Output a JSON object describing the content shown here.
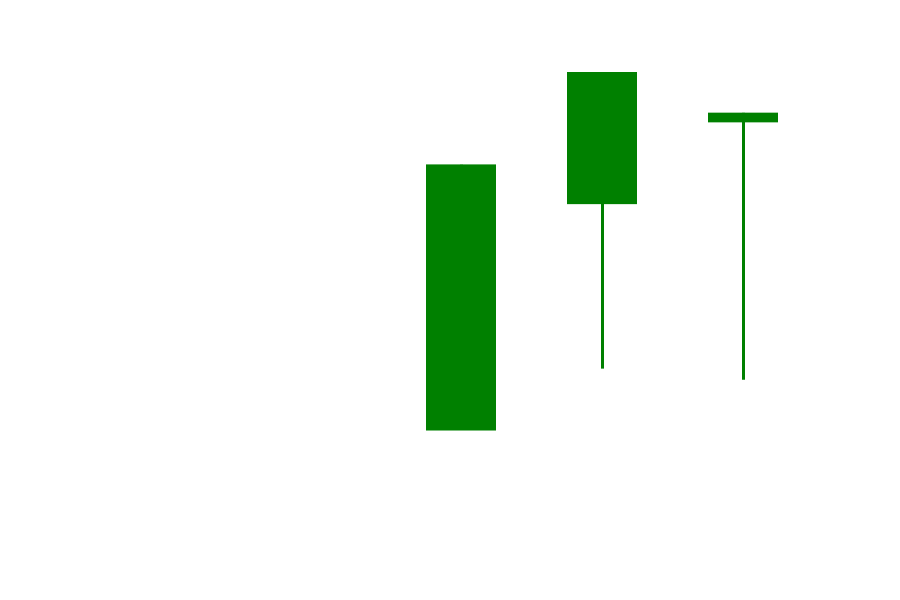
{
  "chart_data": {
    "type": "candlestick",
    "title": "",
    "xlabel": "",
    "ylabel": "",
    "axes_visible": false,
    "grid": false,
    "legend": "none",
    "up_color": "#008000",
    "ylim": [
      0,
      100
    ],
    "candles": [
      {
        "open": 22.4,
        "close": 80.0,
        "high": 80.0,
        "low": 22.4
      },
      {
        "open": 71.4,
        "close": 100.0,
        "high": 100.0,
        "low": 35.8
      },
      {
        "open": 89.1,
        "close": 91.2,
        "high": 91.2,
        "low": 33.4
      }
    ]
  }
}
